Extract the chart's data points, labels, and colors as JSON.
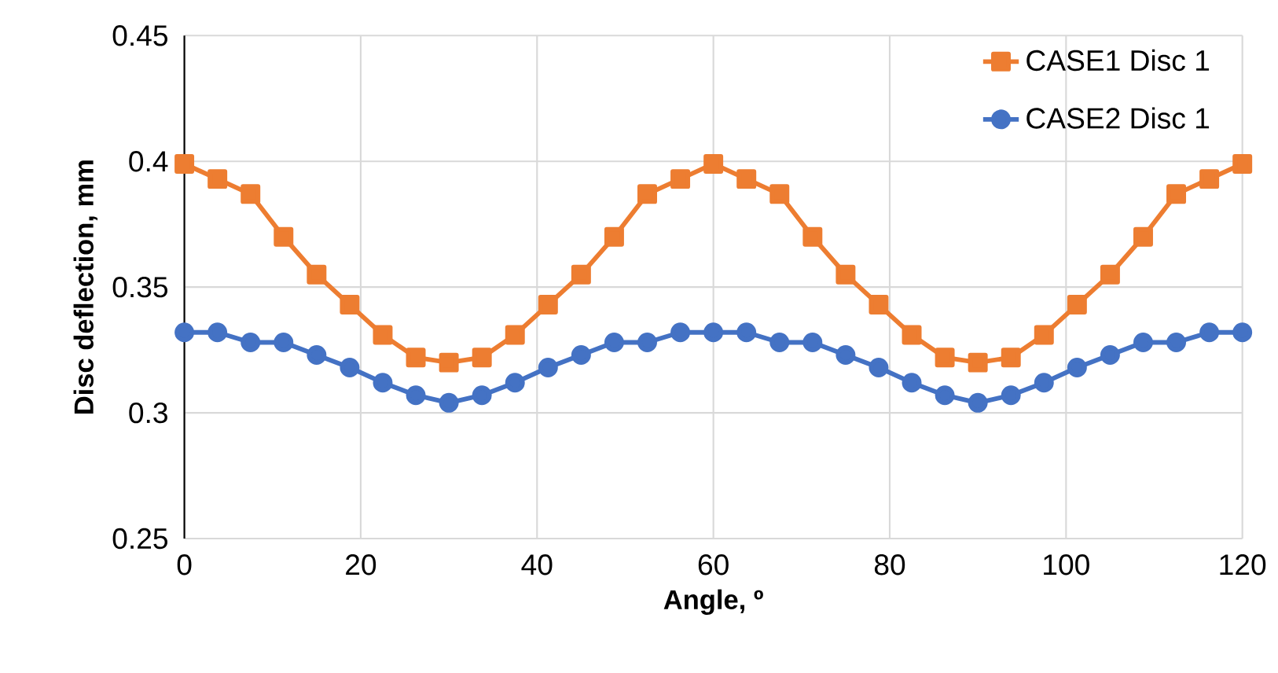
{
  "chart_data": {
    "type": "line",
    "xlabel": "Angle, º",
    "ylabel": "Disc deflection, mm",
    "x": [
      0,
      3.75,
      7.5,
      11.25,
      15,
      18.75,
      22.5,
      26.25,
      30,
      33.75,
      37.5,
      41.25,
      45,
      48.75,
      52.5,
      56.25,
      60,
      63.75,
      67.5,
      71.25,
      75,
      78.75,
      82.5,
      86.25,
      90,
      93.75,
      97.5,
      101.25,
      105,
      108.75,
      112.5,
      116.25,
      120
    ],
    "series": [
      {
        "name": "CASE1 Disc 1",
        "color": "#ed7d31",
        "marker": "square",
        "values": [
          0.399,
          0.393,
          0.387,
          0.37,
          0.355,
          0.343,
          0.331,
          0.322,
          0.32,
          0.322,
          0.331,
          0.343,
          0.355,
          0.37,
          0.387,
          0.393,
          0.399,
          0.393,
          0.387,
          0.37,
          0.355,
          0.343,
          0.331,
          0.322,
          0.32,
          0.322,
          0.331,
          0.343,
          0.355,
          0.37,
          0.387,
          0.393,
          0.399
        ]
      },
      {
        "name": "CASE2 Disc 1",
        "color": "#4472c4",
        "marker": "circle",
        "values": [
          0.332,
          0.332,
          0.328,
          0.328,
          0.323,
          0.318,
          0.312,
          0.307,
          0.304,
          0.307,
          0.312,
          0.318,
          0.323,
          0.328,
          0.328,
          0.332,
          0.332,
          0.332,
          0.328,
          0.328,
          0.323,
          0.318,
          0.312,
          0.307,
          0.304,
          0.307,
          0.312,
          0.318,
          0.323,
          0.328,
          0.328,
          0.332,
          0.332
        ]
      }
    ],
    "xlim": [
      0,
      120
    ],
    "xticks": [
      0,
      20,
      40,
      60,
      80,
      100,
      120
    ],
    "ylim": [
      0.25,
      0.45
    ],
    "yticks": [
      0.25,
      0.3,
      0.35,
      0.4,
      0.45
    ],
    "grid": true,
    "legend": "top right",
    "line_style": "solid"
  }
}
